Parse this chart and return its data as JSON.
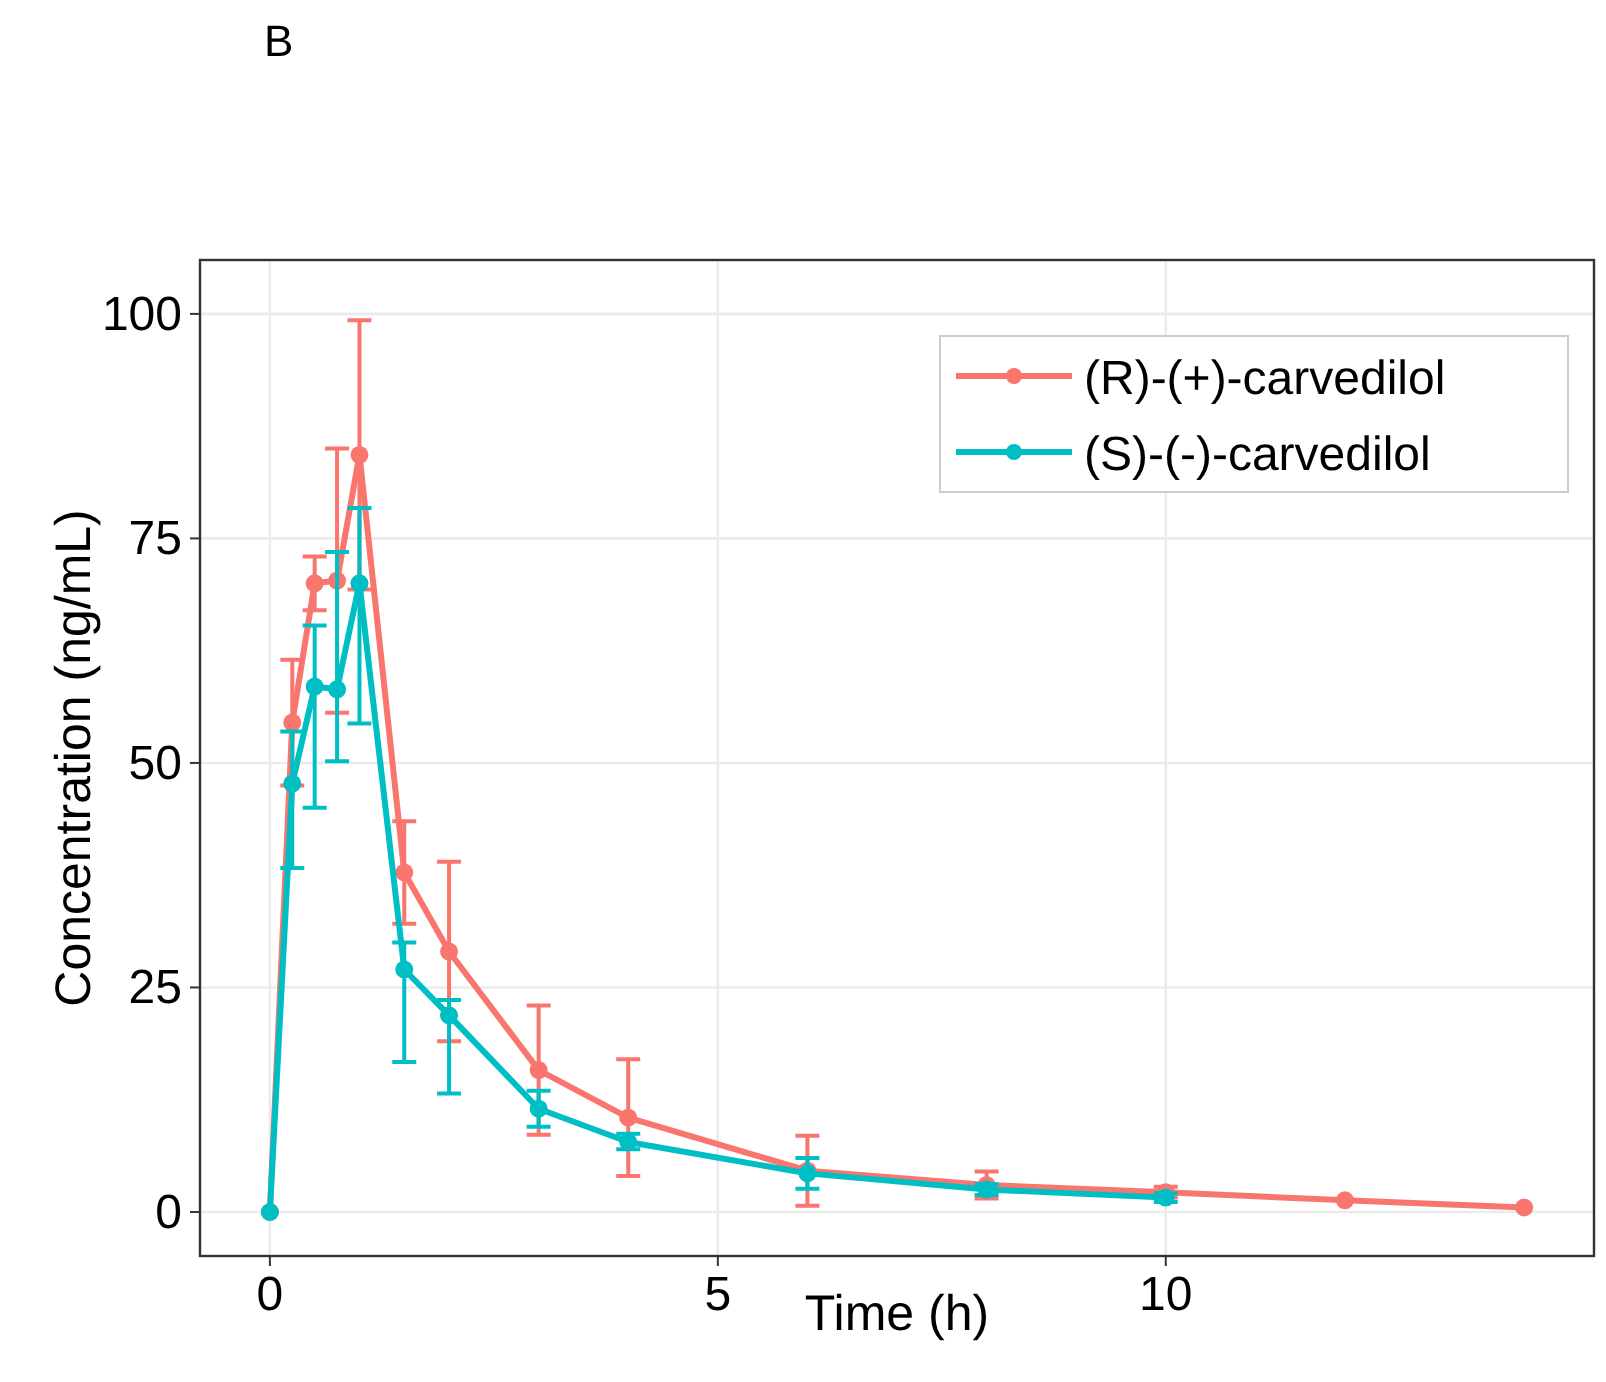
{
  "chart_data": {
    "type": "line",
    "title": "B",
    "xlabel": "Time (h)",
    "ylabel": "Concentration (ng/mL)",
    "xlim": [
      -0.78,
      14.78
    ],
    "xticks": [
      0,
      5,
      10
    ],
    "ylim": [
      -4.9,
      106
    ],
    "yticks": [
      0,
      25,
      50,
      75,
      100
    ],
    "grid": true,
    "legend": "top right",
    "marker": "circle",
    "line_style": "solid",
    "series": [
      {
        "name": "(R)-(+)-carvedilol",
        "color": "#f8766d",
        "x": [
          0,
          0.25,
          0.5,
          0.75,
          1,
          1.5,
          2,
          3,
          4,
          6,
          8,
          10,
          12,
          14
        ],
        "values": [
          0,
          54.5,
          70,
          70.3,
          84.3,
          37.8,
          29,
          15.8,
          10.5,
          4.6,
          3,
          2.2,
          1.3,
          0.5
        ],
        "errors": [
          null,
          7,
          3,
          14.7,
          15,
          5.7,
          10,
          7.2,
          6.5,
          3.9,
          1.5,
          0.6,
          null,
          null
        ]
      },
      {
        "name": "(S)-(-)-carvedilol",
        "color": "#00bfc4",
        "x": [
          0,
          0.25,
          0.5,
          0.75,
          1,
          1.5,
          2,
          3,
          4,
          6,
          8,
          10
        ],
        "values": [
          0,
          47.7,
          58.5,
          58.2,
          70,
          27,
          21.9,
          11.5,
          7.8,
          4.3,
          2.5,
          1.6
        ],
        "errors": [
          null,
          [
            38.3,
            53.5
          ],
          [
            45,
            65.3
          ],
          [
            50.2,
            73.5
          ],
          [
            54.4,
            78.4
          ],
          [
            16.7,
            30
          ],
          [
            13.2,
            23.6
          ],
          [
            9.5,
            13.5
          ],
          [
            7,
            8.7
          ],
          [
            2.6,
            6
          ],
          [
            1.9,
            3.1
          ],
          [
            1.1,
            2.1
          ]
        ]
      }
    ]
  }
}
